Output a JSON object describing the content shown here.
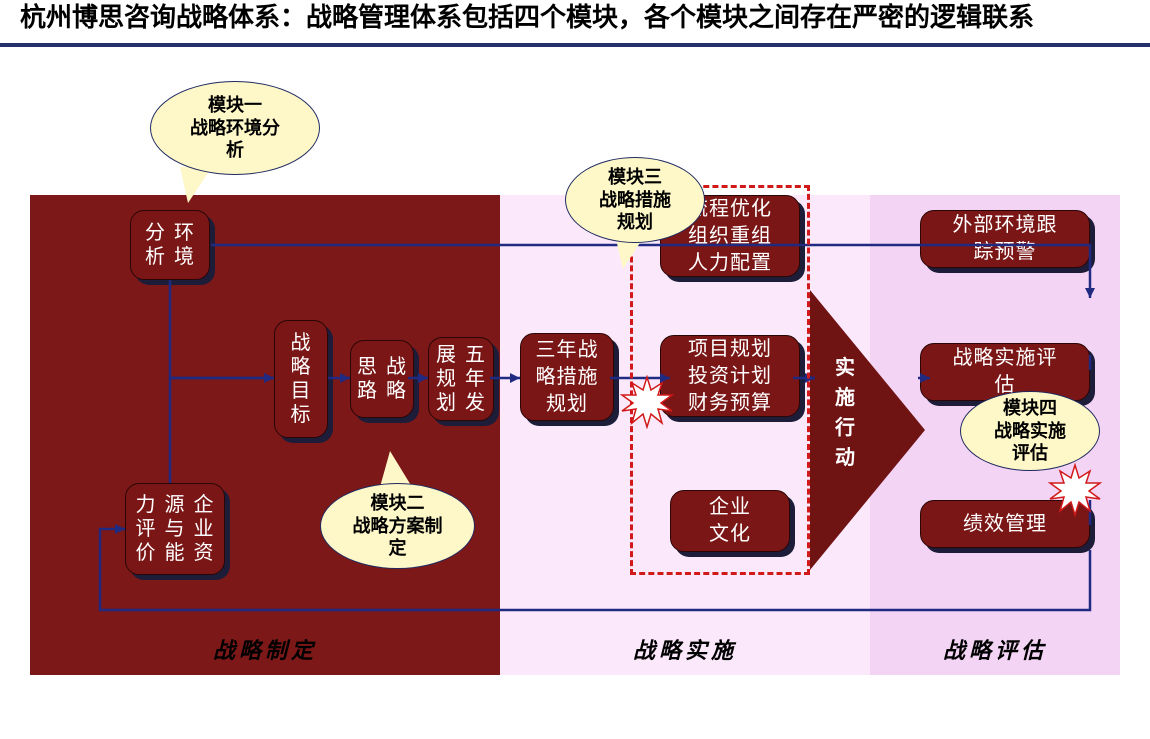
{
  "title": "杭州博思咨询战略体系：战略管理体系包括四个模块，各个模块之间存在严密的逻辑联系",
  "phases": {
    "p1": {
      "label": "战略制定",
      "bg": "#7d1818"
    },
    "p2": {
      "label": "战略实施",
      "bg": "#fbe9fb"
    },
    "p3": {
      "label": "战略评估",
      "bg": "#f3d4f5"
    }
  },
  "callouts": {
    "m1": "模块一\n战略环境分\n析",
    "m2": "模块二\n战略方案制\n定",
    "m3": "模块三\n战略措施\n规划",
    "m4": "模块四\n战略实施\n评估"
  },
  "boxes": {
    "env": {
      "cols": [
        "环境",
        "分析"
      ]
    },
    "res": {
      "cols": [
        "企业资",
        "源与能",
        "力评价"
      ]
    },
    "goal": {
      "cols": [
        "战略目标"
      ]
    },
    "think": {
      "cols": [
        "战略",
        "思路"
      ]
    },
    "fiveyear": {
      "cols": [
        "五年发",
        "展规划"
      ]
    },
    "threeyear": "三年战\n略措施\n规划",
    "top1": "流程优化\n组织重组\n人力配置",
    "mid1": "项目规划\n投资计划\n财务预算",
    "bot1": "企业\n文化",
    "ext": "外部环境跟\n踪预警",
    "eval": "战略实施评\n估",
    "perf": "绩效管理"
  },
  "arrow_label": "实施\n行动",
  "colors": {
    "box_bg": "#7a1616",
    "box_text": "#ffffff",
    "callout_bg": "#fef8c8",
    "callout_border": "#1f2a60",
    "connector": "#1f2a80",
    "border_dark": "#24316b",
    "dash": "#d11919",
    "burst_fill": "#ffffff",
    "burst_stroke": "#d11919"
  }
}
